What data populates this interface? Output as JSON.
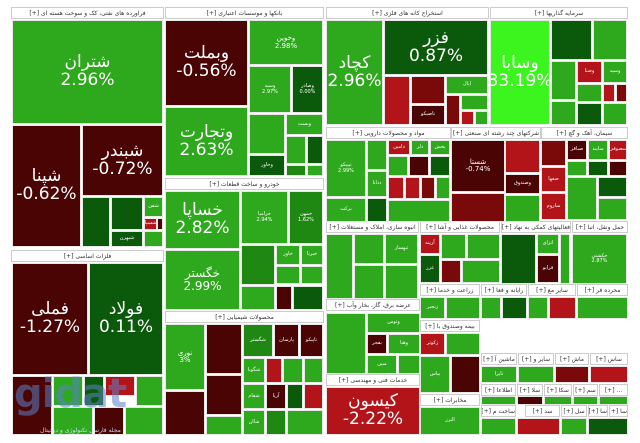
{
  "colors": {
    "green": "#2ea81c",
    "mid_green": "#1f8812",
    "dark_green": "#0b590b",
    "dark_red": "#4a0404",
    "red": "#b3141a",
    "maroon": "#7a0a0a",
    "bright_green": "#3cf51e"
  },
  "headers": {
    "oil": "فراورده های نفتی، کک و سوخت هسته ای [+]",
    "banks": "بانکها و موسسات اعتباری [+]",
    "auto": "خودرو و ساخت قطعات [+]",
    "chem": "محصولات شیمیایی [+]",
    "metals": "فلزات اساسی [+]",
    "mining": "استخراج کانه های فلزی [+]",
    "invest": "سرمایه گذاریها [+]",
    "pharma": "مواد و محصولات دارویی [+]",
    "multi": "شرکتهای چند رشته ای صنعتی [+]",
    "cement": "سیمان، آهک و گچ [+]",
    "construct": "انبوه سازی، املاک و مستغلات [+]",
    "food": "محصولات غذایی و آشا [+]",
    "support": "فعالیتهای کمکی به نهاد [+]",
    "transport": "حمل ونقل، انبا [+]",
    "power": "عرضه برق، گاز، بخار وآب [+]",
    "engineering": "خدمات فنی و مهندسی [+]",
    "agri": "زراعت و خدما [+]",
    "rail": "رایانه و فعا [+]",
    "other_mine": "سایر مع [+]",
    "wood": "محرده فر [+]",
    "textile": "ماشین آ [+]",
    "other2": "سایر و [+]",
    "machine": "ماش [+]",
    "paper": "ساس [+]",
    "insurance": "بیمه وصندوق با [+]",
    "media": "اطلاعا [+]",
    "s1": "سلا [+]",
    "s2": "سکا [+]",
    "s3": "سم [+]",
    "s4": "... [+]",
    "telecom": "مخابرات [+]",
    "build": "ساخت م [+]",
    "s5": "سد [+]",
    "s6": "سل [+]",
    "s7": "سا [+]",
    "s8": "سا [+]"
  },
  "tiles": {
    "shatran": {
      "name": "شتران",
      "pct": "2.96%"
    },
    "shpna": {
      "name": "شپنا",
      "pct": "-0.62%"
    },
    "shbandar": {
      "name": "شبندر",
      "pct": "-0.72%"
    },
    "shfn": {
      "name": "شفن"
    },
    "shsp": {
      "name": "شسپا"
    },
    "shbhrn": {
      "name": "شبهرن"
    },
    "vbmelat": {
      "name": "وبملت",
      "pct": "-0.56%"
    },
    "vtejarat": {
      "name": "وتجارت",
      "pct": "2.63%"
    },
    "vkhvin": {
      "name": "وخوین",
      "pct": "2.98%"
    },
    "vsepah": {
      "name": "وسپه",
      "pct": "2.97%"
    },
    "vsader": {
      "name": "وصادر",
      "pct": "0.00%"
    },
    "vbest": {
      "name": "وبست"
    },
    "vkhavar": {
      "name": "وخاور"
    },
    "khsapa": {
      "name": "خساپا",
      "pct": "2.82%"
    },
    "khgostar": {
      "name": "خگستر",
      "pct": "2.99%"
    },
    "khzamia": {
      "name": "خزامیا",
      "pct": "2.94%"
    },
    "khmhn": {
      "name": "خمهن",
      "pct": "1.62%"
    },
    "khavar": {
      "name": "خاور"
    },
    "khbrna": {
      "name": "خبرنا"
    },
    "fmeli": {
      "name": "فملی",
      "pct": "-1.27%"
    },
    "foolad": {
      "name": "فولاد",
      "pct": "0.11%"
    },
    "nori": {
      "name": "نوری",
      "pct": "3%"
    },
    "shgostar": {
      "name": "شگستر"
    },
    "parsan": {
      "name": "پارسان"
    },
    "tapiko": {
      "name": "تاپیکو"
    },
    "shgoya": {
      "name": "شگویا"
    },
    "shfam": {
      "name": "شفام"
    },
    "shsan": {
      "name": "شاان"
    },
    "aria": {
      "name": "آریا"
    },
    "kchad": {
      "name": "کچاد",
      "pct": "2.96%"
    },
    "fzar": {
      "name": "فزر",
      "pct": "0.87%"
    },
    "tasiko": {
      "name": "تاصیکو"
    },
    "apal": {
      "name": "اپال"
    },
    "vsapa": {
      "name": "وسابا",
      "pct": "33.19%"
    },
    "vsna": {
      "name": "وصنا"
    },
    "vsepah2": {
      "name": "وسپه"
    },
    "tipiko": {
      "name": "تیپیکو",
      "pct": "2.99%"
    },
    "barkat": {
      "name": "برکت"
    },
    "ddana": {
      "name": "ددانا"
    },
    "damin": {
      "name": "دامین"
    },
    "dlr": {
      "name": "دلر"
    },
    "pakhsh": {
      "name": "پخش"
    },
    "shasta": {
      "name": "شستا",
      "pct": "-0.74%"
    },
    "vsandogh": {
      "name": "وصندوق"
    },
    "sbaqer": {
      "name": "صباقر"
    },
    "sfaha": {
      "name": "صفها"
    },
    "saroom": {
      "name": "ساروم"
    },
    "sayand": {
      "name": "سایند"
    },
    "ssoofi": {
      "name": "سصوفی"
    },
    "thbahsaz": {
      "name": "ثبهساز"
    },
    "arine": {
      "name": "آرینه"
    },
    "ghazar": {
      "name": "غزر"
    },
    "atrazi": {
      "name": "اتزای"
    },
    "farabo": {
      "name": "فرابو"
    },
    "hkashti": {
      "name": "حکشتی",
      "pct": "2.87%"
    },
    "vtoos": {
      "name": "وتوس"
    },
    "bfajr": {
      "name": "بفجر"
    },
    "vhna": {
      "name": "وهنا"
    },
    "mobin": {
      "name": "مبین"
    },
    "kisoon": {
      "name": "کیسون",
      "pct": "-2.22%"
    },
    "zanjir": {
      "name": "زنجیر"
    },
    "zkotr": {
      "name": "زکوثر"
    },
    "bpas": {
      "name": "بپاس"
    },
    "alborz": {
      "name": "البرز"
    },
    "tira": {
      "name": "تایرا"
    }
  },
  "watermark": {
    "logo": "gidat.ir",
    "tagline": "مجله فارسی تکنولوژی و دیجیتال"
  }
}
